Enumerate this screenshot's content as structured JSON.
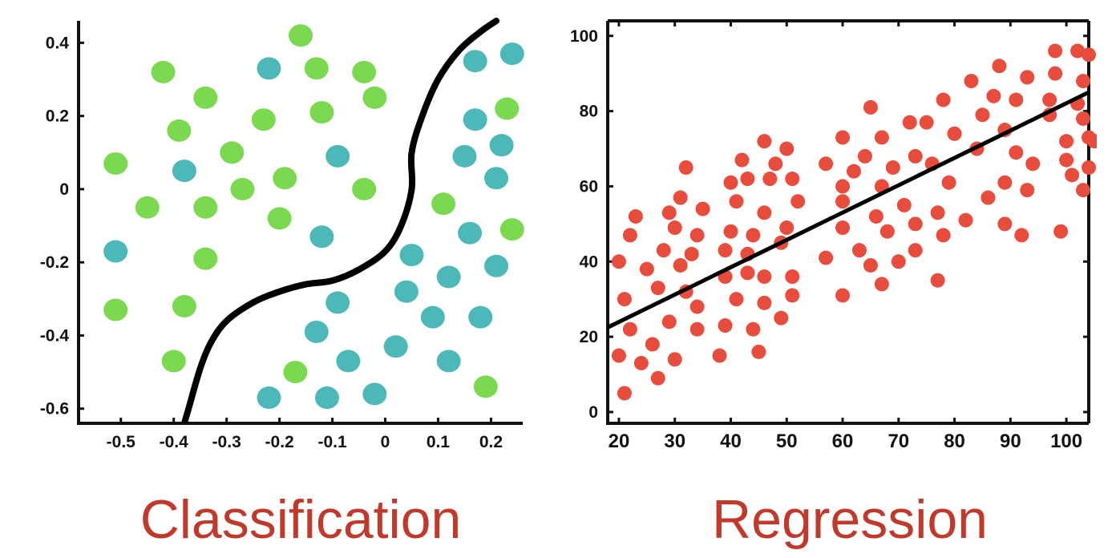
{
  "colors": {
    "class_a": "#7ad94e",
    "class_b": "#4db8b8",
    "regression_points": "#e74c3c",
    "lines": "#000000",
    "axes": "#111111",
    "caption": "#c0392b"
  },
  "captions": {
    "left": "Classification",
    "right": "Regression"
  },
  "chart_data": [
    {
      "type": "scatter",
      "title": "Classification",
      "xlabel": "",
      "ylabel": "",
      "xlim": [
        -0.58,
        0.26
      ],
      "ylim": [
        -0.64,
        0.46
      ],
      "x_ticks": [
        -0.5,
        -0.4,
        -0.3,
        -0.2,
        -0.1,
        0,
        0.1,
        0.2
      ],
      "x_tick_labels": [
        "-0.5",
        "-0.4",
        "-0.3",
        "-0.2",
        "-0.1",
        "0",
        "0.1",
        "0.2"
      ],
      "y_ticks": [
        0.4,
        0.2,
        0,
        -0.2,
        -0.4,
        -0.6
      ],
      "y_tick_labels": [
        "0.4",
        "0.2",
        "0",
        "-0.2",
        "-0.4",
        "-0.6"
      ],
      "grid": false,
      "decision_boundary": [
        [
          -0.38,
          -0.64
        ],
        [
          -0.37,
          -0.59
        ],
        [
          -0.35,
          -0.49
        ],
        [
          -0.33,
          -0.42
        ],
        [
          -0.3,
          -0.36
        ],
        [
          -0.25,
          -0.31
        ],
        [
          -0.2,
          -0.28
        ],
        [
          -0.15,
          -0.26
        ],
        [
          -0.1,
          -0.25
        ],
        [
          -0.05,
          -0.22
        ],
        [
          0.0,
          -0.17
        ],
        [
          0.03,
          -0.1
        ],
        [
          0.05,
          0.0
        ],
        [
          0.05,
          0.1
        ],
        [
          0.07,
          0.2
        ],
        [
          0.1,
          0.3
        ],
        [
          0.14,
          0.38
        ],
        [
          0.18,
          0.43
        ],
        [
          0.21,
          0.46
        ]
      ],
      "series": [
        {
          "points": [
            [
              -0.16,
              0.42
            ],
            [
              -0.42,
              0.32
            ],
            [
              -0.13,
              0.33
            ],
            [
              -0.04,
              0.32
            ],
            [
              -0.34,
              0.25
            ],
            [
              -0.02,
              0.25
            ],
            [
              -0.23,
              0.19
            ],
            [
              -0.12,
              0.21
            ],
            [
              0.23,
              0.22
            ],
            [
              -0.39,
              0.16
            ],
            [
              -0.29,
              0.1
            ],
            [
              -0.51,
              0.07
            ],
            [
              -0.19,
              0.03
            ],
            [
              -0.27,
              0.0
            ],
            [
              -0.04,
              0.0
            ],
            [
              -0.45,
              -0.05
            ],
            [
              -0.34,
              -0.05
            ],
            [
              -0.2,
              -0.08
            ],
            [
              0.11,
              -0.04
            ],
            [
              0.24,
              -0.11
            ],
            [
              -0.34,
              -0.19
            ],
            [
              -0.51,
              -0.33
            ],
            [
              -0.38,
              -0.32
            ],
            [
              -0.4,
              -0.47
            ],
            [
              -0.17,
              -0.5
            ],
            [
              0.19,
              -0.54
            ]
          ]
        },
        {
          "points": [
            [
              -0.22,
              0.33
            ],
            [
              0.17,
              0.35
            ],
            [
              0.24,
              0.37
            ],
            [
              0.17,
              0.19
            ],
            [
              0.22,
              0.12
            ],
            [
              -0.09,
              0.09
            ],
            [
              0.15,
              0.09
            ],
            [
              -0.38,
              0.05
            ],
            [
              0.21,
              0.03
            ],
            [
              -0.12,
              -0.13
            ],
            [
              0.16,
              -0.12
            ],
            [
              -0.51,
              -0.17
            ],
            [
              0.05,
              -0.18
            ],
            [
              0.21,
              -0.21
            ],
            [
              0.12,
              -0.24
            ],
            [
              0.04,
              -0.28
            ],
            [
              -0.09,
              -0.31
            ],
            [
              -0.13,
              -0.39
            ],
            [
              0.09,
              -0.35
            ],
            [
              0.18,
              -0.35
            ],
            [
              0.02,
              -0.43
            ],
            [
              -0.07,
              -0.47
            ],
            [
              0.12,
              -0.47
            ],
            [
              -0.22,
              -0.57
            ],
            [
              -0.11,
              -0.57
            ],
            [
              -0.02,
              -0.56
            ]
          ]
        }
      ]
    },
    {
      "type": "scatter",
      "title": "Regression",
      "xlabel": "",
      "ylabel": "",
      "xlim": [
        18,
        104
      ],
      "ylim": [
        -3,
        104
      ],
      "x_ticks": [
        20,
        30,
        40,
        50,
        60,
        70,
        80,
        90,
        100
      ],
      "x_tick_labels": [
        "20",
        "30",
        "40",
        "50",
        "60",
        "70",
        "80",
        "90",
        "100"
      ],
      "y_ticks": [
        0,
        20,
        40,
        60,
        80,
        100
      ],
      "y_tick_labels": [
        "0",
        "20",
        "40",
        "60",
        "80",
        "100"
      ],
      "grid": false,
      "regression_line": {
        "x": [
          18,
          104
        ],
        "y": [
          22.5,
          85
        ]
      },
      "series": [
        {
          "points": [
            [
              20,
              40
            ],
            [
              20,
              15
            ],
            [
              21,
              30
            ],
            [
              21,
              5
            ],
            [
              22,
              47
            ],
            [
              22,
              22
            ],
            [
              23,
              52
            ],
            [
              24,
              13
            ],
            [
              25,
              38
            ],
            [
              26,
              18
            ],
            [
              27,
              33
            ],
            [
              27,
              9
            ],
            [
              28,
              43
            ],
            [
              29,
              53
            ],
            [
              29,
              24
            ],
            [
              30,
              49
            ],
            [
              30,
              14
            ],
            [
              31,
              57
            ],
            [
              31,
              39
            ],
            [
              32,
              32
            ],
            [
              32,
              65
            ],
            [
              33,
              42
            ],
            [
              34,
              47
            ],
            [
              34,
              28
            ],
            [
              34,
              22
            ],
            [
              35,
              54
            ],
            [
              38,
              15
            ],
            [
              39,
              43
            ],
            [
              39,
              36
            ],
            [
              39,
              23
            ],
            [
              40,
              61
            ],
            [
              40,
              48
            ],
            [
              41,
              56
            ],
            [
              41,
              30
            ],
            [
              42,
              67
            ],
            [
              43,
              62
            ],
            [
              43,
              42
            ],
            [
              43,
              37
            ],
            [
              44,
              47
            ],
            [
              44,
              22
            ],
            [
              45,
              16
            ],
            [
              46,
              72
            ],
            [
              46,
              53
            ],
            [
              46,
              29
            ],
            [
              46,
              36
            ],
            [
              47,
              62
            ],
            [
              48,
              66
            ],
            [
              49,
              45
            ],
            [
              49,
              25
            ],
            [
              50,
              70
            ],
            [
              50,
              49
            ],
            [
              51,
              62
            ],
            [
              51,
              36
            ],
            [
              51,
              31
            ],
            [
              52,
              56
            ],
            [
              57,
              66
            ],
            [
              57,
              41
            ],
            [
              60,
              73
            ],
            [
              60,
              60
            ],
            [
              60,
              49
            ],
            [
              60,
              56
            ],
            [
              60,
              31
            ],
            [
              62,
              64
            ],
            [
              63,
              43
            ],
            [
              64,
              68
            ],
            [
              65,
              81
            ],
            [
              65,
              39
            ],
            [
              66,
              52
            ],
            [
              67,
              73
            ],
            [
              67,
              60
            ],
            [
              67,
              34
            ],
            [
              68,
              48
            ],
            [
              69,
              65
            ],
            [
              70,
              40
            ],
            [
              71,
              55
            ],
            [
              72,
              77
            ],
            [
              73,
              68
            ],
            [
              73,
              50
            ],
            [
              73,
              43
            ],
            [
              75,
              77
            ],
            [
              76,
              66
            ],
            [
              77,
              53
            ],
            [
              77,
              35
            ],
            [
              78,
              83
            ],
            [
              78,
              47
            ],
            [
              79,
              61
            ],
            [
              80,
              74
            ],
            [
              82,
              51
            ],
            [
              83,
              88
            ],
            [
              84,
              70
            ],
            [
              85,
              79
            ],
            [
              86,
              57
            ],
            [
              87,
              84
            ],
            [
              88,
              92
            ],
            [
              89,
              61
            ],
            [
              89,
              75
            ],
            [
              89,
              50
            ],
            [
              91,
              69
            ],
            [
              91,
              83
            ],
            [
              92,
              47
            ],
            [
              93,
              89
            ],
            [
              93,
              59
            ],
            [
              94,
              66
            ],
            [
              97,
              79
            ],
            [
              97,
              83
            ],
            [
              98,
              96
            ],
            [
              98,
              90
            ],
            [
              99,
              48
            ],
            [
              100,
              72
            ],
            [
              100,
              67
            ],
            [
              101,
              63
            ],
            [
              102,
              82
            ],
            [
              102,
              96
            ],
            [
              103,
              78
            ],
            [
              103,
              88
            ],
            [
              103,
              59
            ],
            [
              104,
              73
            ],
            [
              104,
              95
            ],
            [
              104,
              65
            ],
            [
              105,
              72
            ]
          ]
        }
      ]
    }
  ]
}
